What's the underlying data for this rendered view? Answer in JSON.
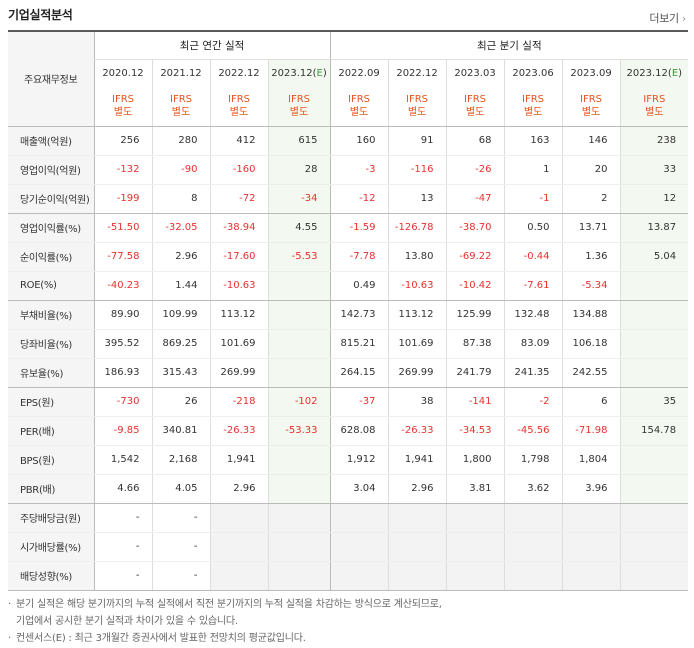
{
  "header": {
    "title": "기업실적분석",
    "more_label": "더보기",
    "more_chevron": "›"
  },
  "columns": {
    "label_head": "주요재무정보",
    "annual_group": "최근 연간 실적",
    "quarter_group": "최근 분기 실적",
    "periods": [
      "2020.12",
      "2021.12",
      "2022.12",
      "2023.12(E)",
      "2022.09",
      "2022.12",
      "2023.03",
      "2023.06",
      "2023.09",
      "2023.12(E)"
    ],
    "ifrs_line1": "IFRS",
    "ifrs_line2": "별도"
  },
  "rows": [
    {
      "label": "매출액(억원)",
      "values": [
        "256",
        "280",
        "412",
        "615",
        "160",
        "91",
        "68",
        "163",
        "146",
        "238"
      ]
    },
    {
      "label": "영업이익(억원)",
      "values": [
        "-132",
        "-90",
        "-160",
        "28",
        "-3",
        "-116",
        "-26",
        "1",
        "20",
        "33"
      ]
    },
    {
      "label": "당기순이익(억원)",
      "values": [
        "-199",
        "8",
        "-72",
        "-34",
        "-12",
        "13",
        "-47",
        "-1",
        "2",
        "12"
      ]
    },
    {
      "label": "영업이익률(%)",
      "values": [
        "-51.50",
        "-32.05",
        "-38.94",
        "4.55",
        "-1.59",
        "-126.78",
        "-38.70",
        "0.50",
        "13.71",
        "13.87"
      ]
    },
    {
      "label": "순이익률(%)",
      "values": [
        "-77.58",
        "2.96",
        "-17.60",
        "-5.53",
        "-7.78",
        "13.80",
        "-69.22",
        "-0.44",
        "1.36",
        "5.04"
      ]
    },
    {
      "label": "ROE(%)",
      "values": [
        "-40.23",
        "1.44",
        "-10.63",
        "",
        "0.49",
        "-10.63",
        "-10.42",
        "-7.61",
        "-5.34",
        ""
      ]
    },
    {
      "label": "부채비율(%)",
      "values": [
        "89.90",
        "109.99",
        "113.12",
        "",
        "142.73",
        "113.12",
        "125.99",
        "132.48",
        "134.88",
        ""
      ]
    },
    {
      "label": "당좌비율(%)",
      "values": [
        "395.52",
        "869.25",
        "101.69",
        "",
        "815.21",
        "101.69",
        "87.38",
        "83.09",
        "106.18",
        ""
      ]
    },
    {
      "label": "유보율(%)",
      "values": [
        "186.93",
        "315.43",
        "269.99",
        "",
        "264.15",
        "269.99",
        "241.79",
        "241.35",
        "242.55",
        ""
      ]
    },
    {
      "label": "EPS(원)",
      "values": [
        "-730",
        "26",
        "-218",
        "-102",
        "-37",
        "38",
        "-141",
        "-2",
        "6",
        "35"
      ]
    },
    {
      "label": "PER(배)",
      "values": [
        "-9.85",
        "340.81",
        "-26.33",
        "-53.33",
        "628.08",
        "-26.33",
        "-34.53",
        "-45.56",
        "-71.98",
        "154.78"
      ]
    },
    {
      "label": "BPS(원)",
      "values": [
        "1,542",
        "2,168",
        "1,941",
        "",
        "1,912",
        "1,941",
        "1,800",
        "1,798",
        "1,804",
        ""
      ]
    },
    {
      "label": "PBR(배)",
      "values": [
        "4.66",
        "4.05",
        "2.96",
        "",
        "3.04",
        "2.96",
        "3.81",
        "3.62",
        "3.96",
        ""
      ]
    },
    {
      "label": "주당배당금(원)",
      "values": [
        "-",
        "-",
        "",
        "",
        "",
        "",
        "",
        "",
        "",
        ""
      ]
    },
    {
      "label": "시가배당률(%)",
      "values": [
        "-",
        "-",
        "",
        "",
        "",
        "",
        "",
        "",
        "",
        ""
      ]
    },
    {
      "label": "배당성향(%)",
      "values": [
        "-",
        "-",
        "",
        "",
        "",
        "",
        "",
        "",
        "",
        ""
      ]
    }
  ],
  "notes": [
    {
      "bullet": "·",
      "text": "분기 실적은 해당 분기까지의 누적 실적에서 직전 분기까지의 누적 실적을 차감하는 방식으로 계산되므로,"
    },
    {
      "bullet": "",
      "text": "기업에서 공시한 분기 실적과 차이가 있을 수 있습니다."
    },
    {
      "bullet": "·",
      "text": "컨센서스(E) : 최근 3개월간 증권사에서 발표한 전망치의 평균값입니다."
    }
  ],
  "colors": {
    "negative": "#e8312f",
    "ifrs": "#e8531c",
    "estimate_bg": "#f3f9f0",
    "estimate_mark": "#3b9a3b"
  }
}
